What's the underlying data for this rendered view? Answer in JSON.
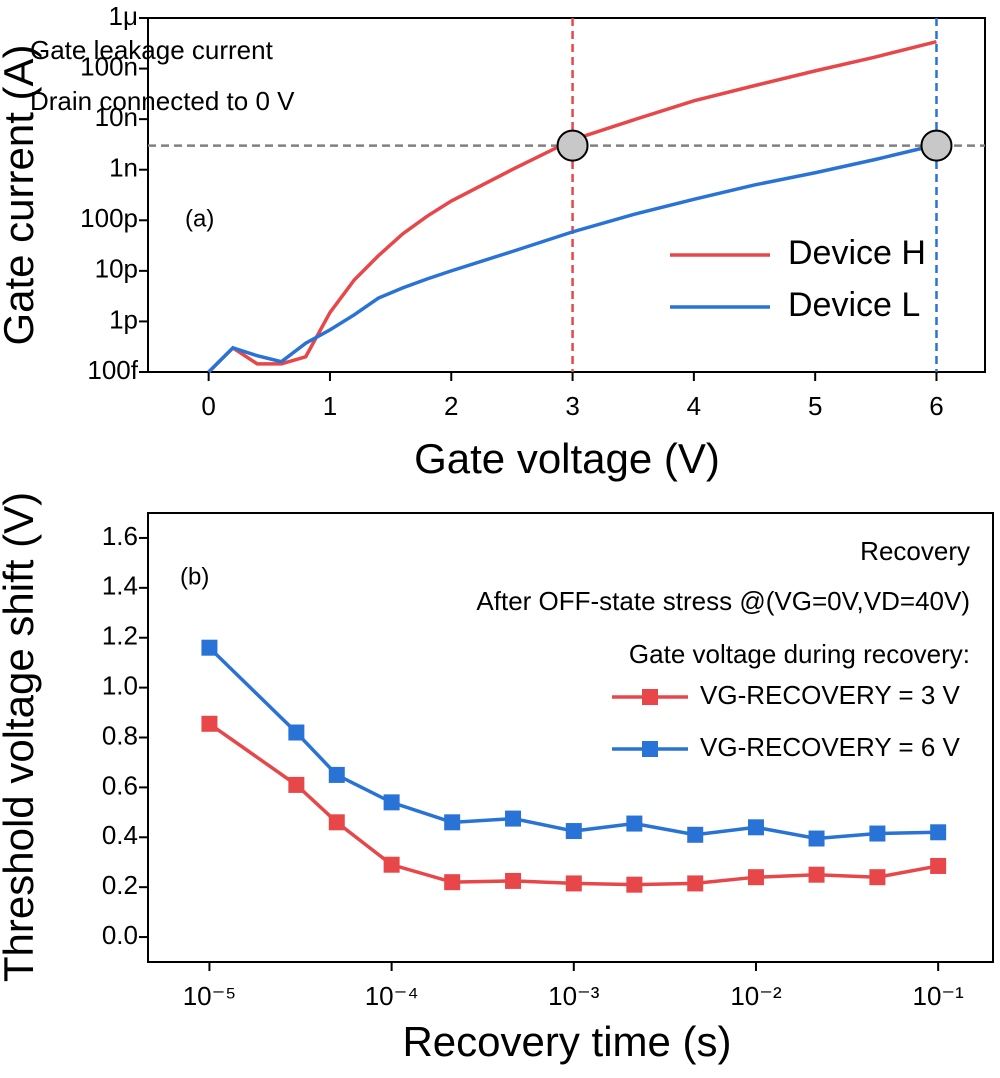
{
  "chart_data": [
    {
      "type": "line",
      "x_label": "Gate voltage (V)",
      "y_label": "Gate current (A)",
      "annotations": [
        "Gate leakage current",
        "Drain connected to 0 V",
        "(a)"
      ],
      "x": [
        0,
        0.2,
        0.4,
        0.6,
        0.8,
        1.0,
        1.2,
        1.4,
        1.6,
        1.8,
        2.0,
        2.5,
        3.0,
        3.5,
        4.0,
        4.5,
        5.0,
        5.5,
        6.0
      ],
      "series": [
        {
          "name": "Device H",
          "color": "#e8474a",
          "values": [
            1e-13,
            3e-13,
            1.45e-13,
            1.45e-13,
            2e-13,
            1.5e-12,
            6.6e-12,
            2e-11,
            5.4e-11,
            1.2e-10,
            2.4e-10,
            1e-09,
            3.9e-09,
            9.6e-09,
            2.3e-08,
            4.6e-08,
            9e-08,
            1.7e-07,
            3.4e-07
          ]
        },
        {
          "name": "Device L",
          "color": "#2a73d6",
          "values": [
            1e-13,
            3e-13,
            2.1e-13,
            1.6e-13,
            3.7e-13,
            6.8e-13,
            1.35e-12,
            2.9e-12,
            4.6e-12,
            6.9e-12,
            1e-11,
            2.4e-11,
            5.9e-11,
            1.3e-10,
            2.6e-10,
            5e-10,
            8.7e-10,
            1.6e-09,
            3.1e-09
          ]
        }
      ],
      "hlines": [
        {
          "y": 3e-09,
          "color": "#808080"
        }
      ],
      "vlines": [
        {
          "x": 3,
          "color": "#e8474a"
        },
        {
          "x": 6,
          "color": "#2a73d6"
        }
      ],
      "points": [
        {
          "x": 3,
          "y": 3e-09
        },
        {
          "x": 6,
          "y": 3e-09
        }
      ],
      "xlim": [
        -0.5,
        6.4
      ],
      "xticks": [
        0,
        1,
        2,
        3,
        4,
        5,
        6
      ],
      "ylog": true,
      "ylim": [
        1e-13,
        1e-06
      ],
      "yticks": [
        {
          "value": 1e-13,
          "label": "100f"
        },
        {
          "value": 1e-12,
          "label": "1p"
        },
        {
          "value": 1e-11,
          "label": "10p"
        },
        {
          "value": 1e-10,
          "label": "100p"
        },
        {
          "value": 1e-09,
          "label": "1n"
        },
        {
          "value": 1e-08,
          "label": "10n"
        },
        {
          "value": 1e-07,
          "label": "100n"
        },
        {
          "value": 1e-06,
          "label": "1μ"
        }
      ]
    },
    {
      "type": "line",
      "marker": "square",
      "x_label": "Recovery time (s)",
      "y_label": "Threshold voltage shift (V)",
      "annotations": [
        "Recovery",
        "After OFF-state stress @(VG=0V,VD=40V)",
        "Gate voltage during recovery:",
        "(b)"
      ],
      "x": [
        1e-05,
        3e-05,
        5e-05,
        0.0001,
        0.000215,
        0.000464,
        0.001,
        0.00215,
        0.00464,
        0.01,
        0.0215,
        0.0464,
        0.1
      ],
      "series": [
        {
          "name": "VG-RECOVERY = 3 V",
          "color": "#e8474a",
          "values": [
            0.855,
            0.61,
            0.46,
            0.29,
            0.22,
            0.225,
            0.215,
            0.21,
            0.215,
            0.24,
            0.25,
            0.24,
            0.285
          ]
        },
        {
          "name": "VG-RECOVERY = 6 V",
          "color": "#2a73d6",
          "values": [
            1.16,
            0.82,
            0.65,
            0.54,
            0.46,
            0.475,
            0.425,
            0.455,
            0.41,
            0.44,
            0.395,
            0.415,
            0.42
          ]
        }
      ],
      "xlog": true,
      "xlim": [
        4.6e-06,
        0.2
      ],
      "xticks": [
        {
          "value": 1e-05,
          "label": "10⁻⁵"
        },
        {
          "value": 0.0001,
          "label": "10⁻⁴"
        },
        {
          "value": 0.001,
          "label": "10⁻³"
        },
        {
          "value": 0.01,
          "label": "10⁻²"
        },
        {
          "value": 0.1,
          "label": "10⁻¹"
        }
      ],
      "ylim": [
        -0.1,
        1.7
      ],
      "yticks": [
        {
          "value": 0,
          "label": "0.0"
        },
        {
          "value": 0.2,
          "label": "0.2"
        },
        {
          "value": 0.4,
          "label": "0.4"
        },
        {
          "value": 0.6,
          "label": "0.6"
        },
        {
          "value": 0.8,
          "label": "0.8"
        },
        {
          "value": 1,
          "label": "1.0"
        },
        {
          "value": 1.2,
          "label": "1.2"
        },
        {
          "value": 1.4,
          "label": "1.4"
        },
        {
          "value": 1.6,
          "label": "1.6"
        }
      ]
    }
  ]
}
